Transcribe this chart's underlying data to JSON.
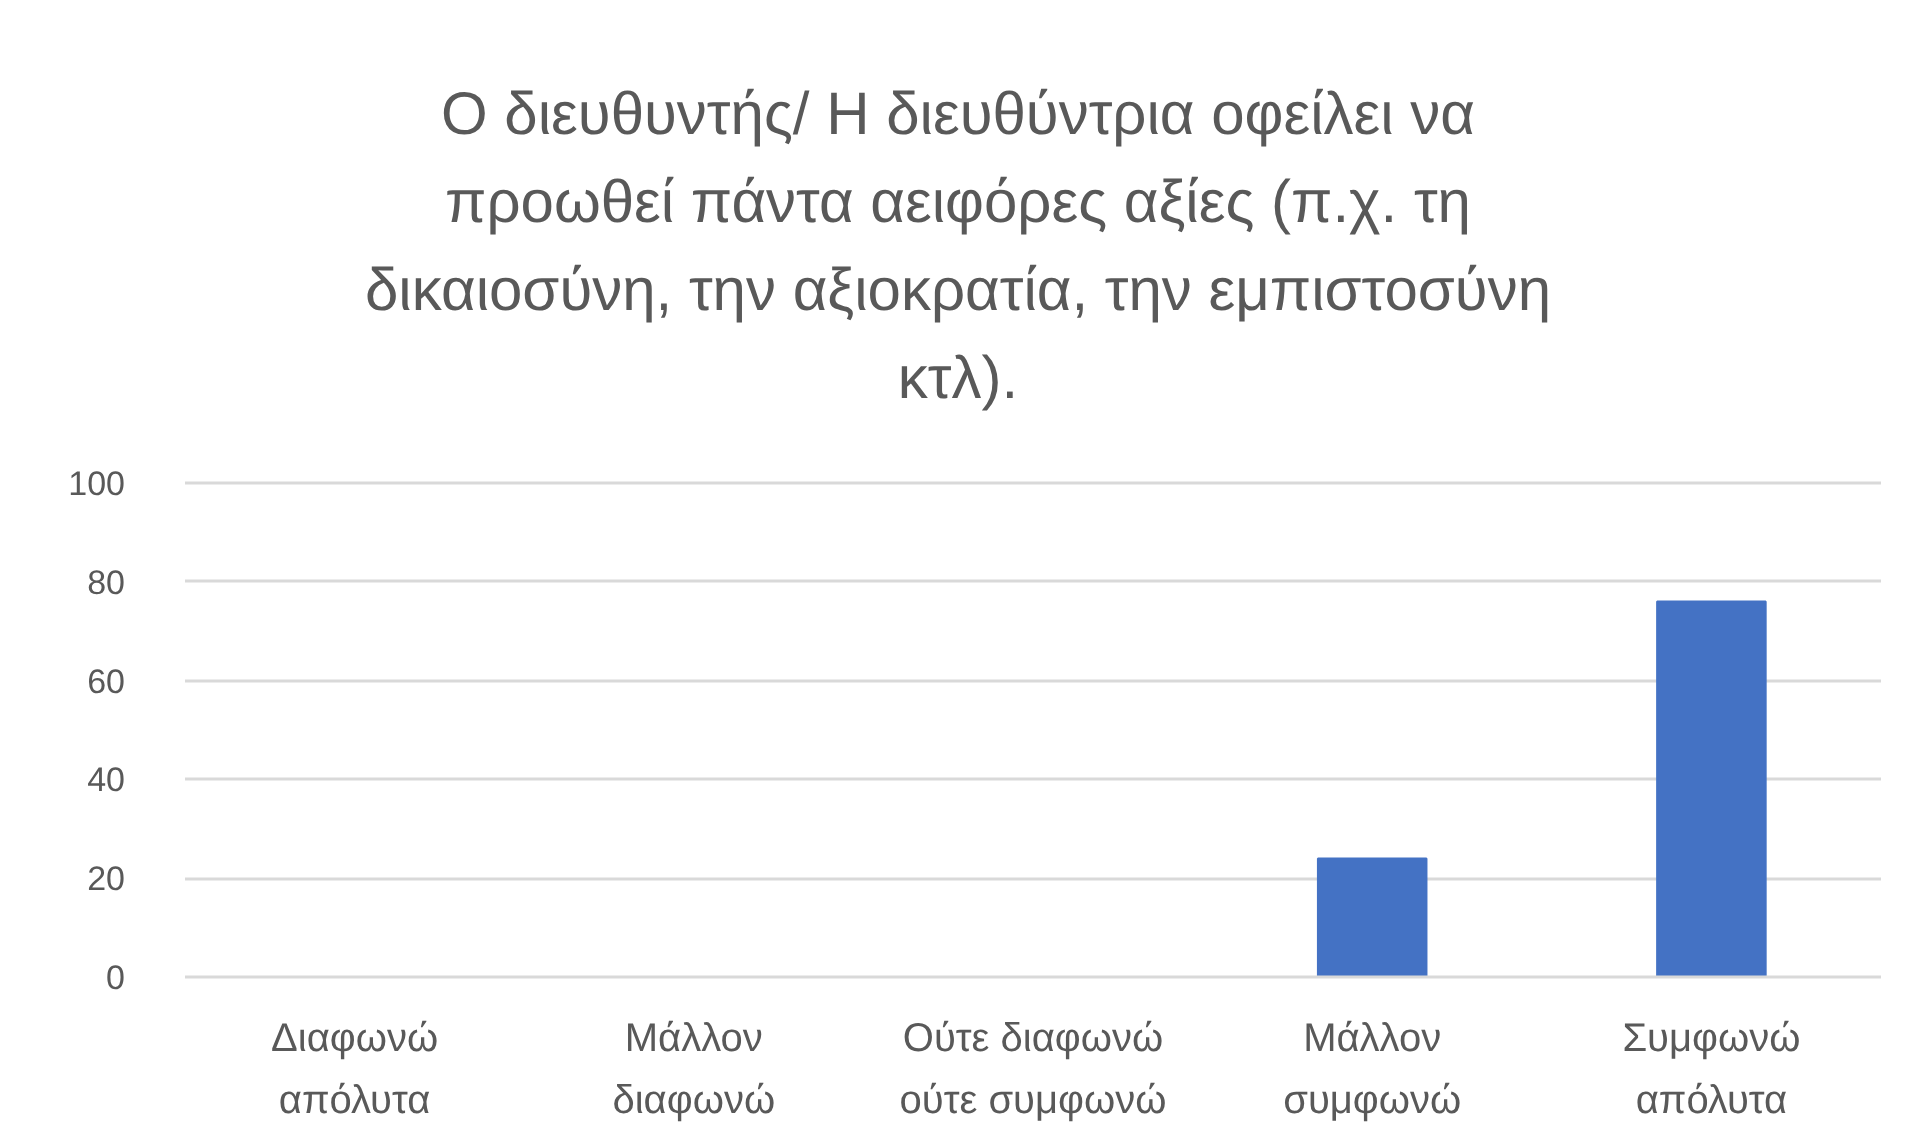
{
  "chart_data": {
    "type": "bar",
    "title": "Ο διευθυντής/ Η διευθύντρια οφείλει να προωθεί πάντα αειφόρες αξίες (π.χ. τη δικαιοσύνη, την αξιοκρατία, την εμπιστοσύνη κτλ).",
    "categories": [
      "Διαφωνώ απόλυτα",
      "Μάλλον διαφωνώ",
      "Ούτε διαφωνώ ούτε συμφωνώ",
      "Μάλλον συμφωνώ",
      "Συμφωνώ απόλυτα"
    ],
    "values": [
      0,
      0,
      0,
      24,
      76
    ],
    "color": "#4472c4",
    "ylim": [
      0,
      100
    ],
    "yticks": [
      0,
      20,
      40,
      60,
      80,
      100
    ],
    "grid": "y"
  }
}
